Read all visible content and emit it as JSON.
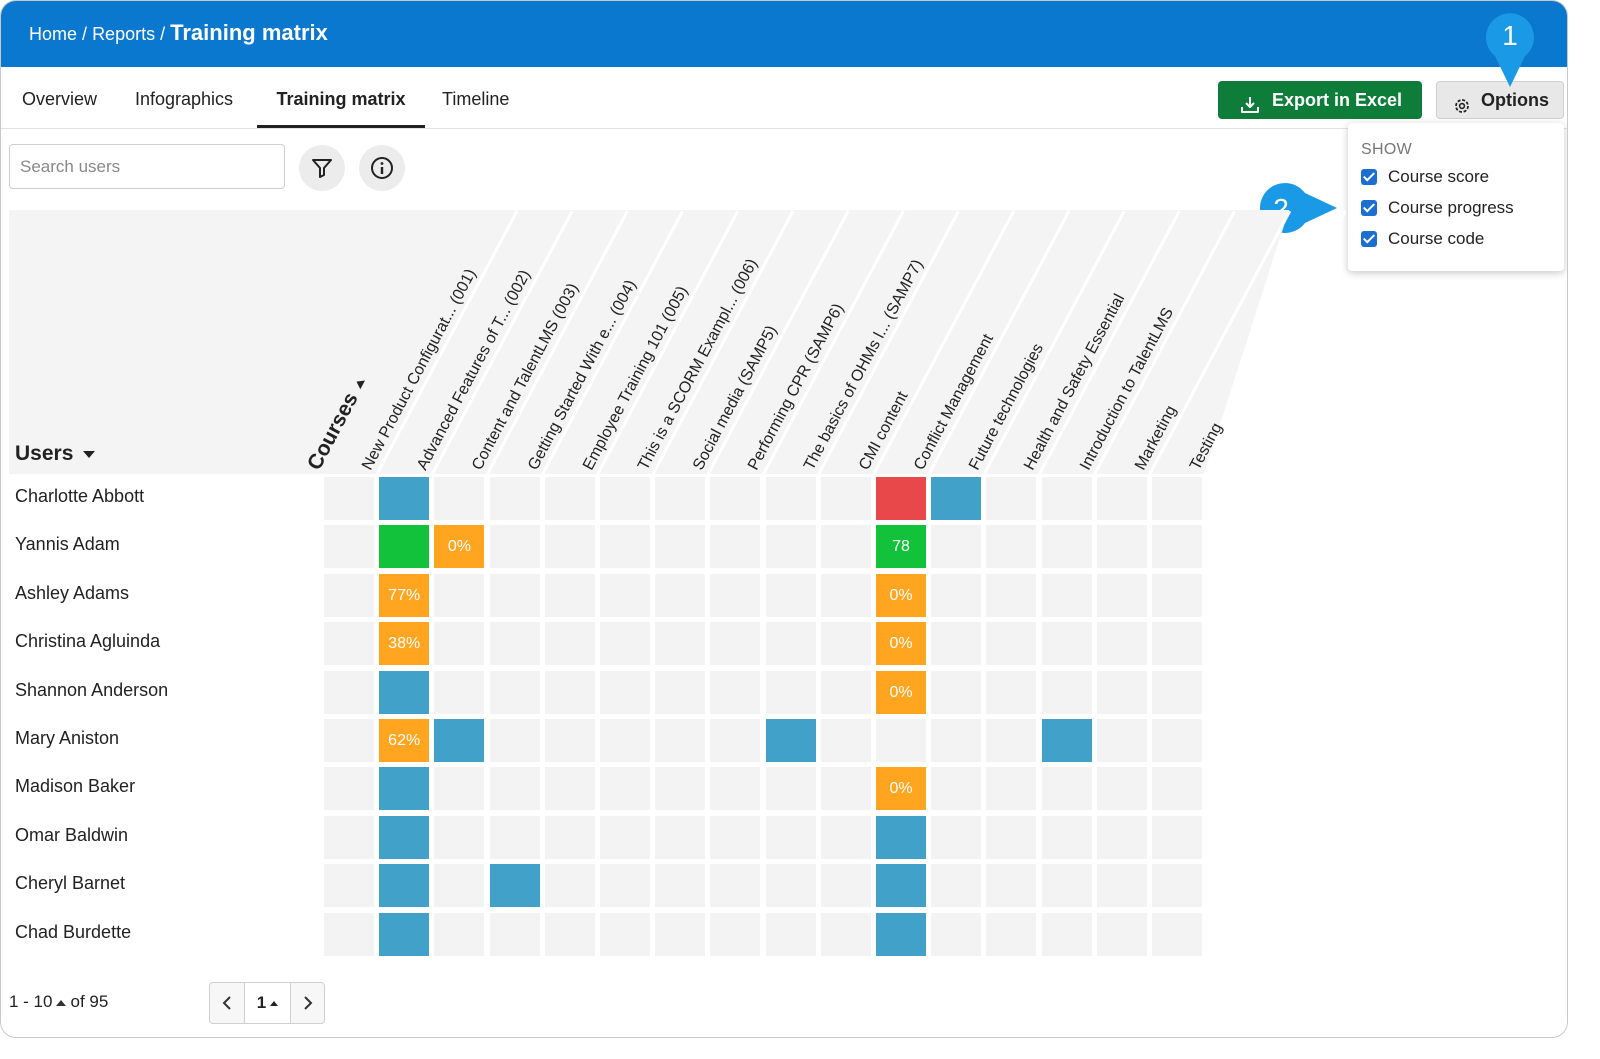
{
  "breadcrumb": {
    "home": "Home",
    "sep1": "/",
    "reports": "Reports",
    "sep2": "/",
    "current": "Training matrix"
  },
  "tabs": [
    {
      "label": "Overview"
    },
    {
      "label": "Infographics"
    },
    {
      "label": "Training matrix",
      "active": true
    },
    {
      "label": "Timeline"
    }
  ],
  "toolbar": {
    "export_label": "Export in Excel",
    "options_label": "Options",
    "export_color": "#0f7d3a"
  },
  "options_menu": {
    "header": "SHOW",
    "items": [
      {
        "label": "Course score",
        "checked": true
      },
      {
        "label": "Course progress",
        "checked": true
      },
      {
        "label": "Course code",
        "checked": true
      }
    ]
  },
  "callouts": [
    {
      "number": "1"
    },
    {
      "number": "2"
    }
  ],
  "search": {
    "placeholder": "Search users",
    "value": ""
  },
  "icons": {
    "filter": "filter-icon",
    "info": "info-icon",
    "export": "download-icon",
    "options": "gear-icon"
  },
  "matrix": {
    "users_header": "Users",
    "courses_header": "Courses",
    "courses": [
      "New Product Configurat... (001)",
      "Advanced Features of T... (002)",
      "Content and TalentLMS (003)",
      "Getting Started With e... (004)",
      "Employee Training 101 (005)",
      "This is a SCORM Exampl... (006)",
      "Social media (SAMP5)",
      "Performing CPR (SAMP6)",
      "The basics of OHMs l... (SAMP7)",
      "CMI content",
      "Conflict Management",
      "Future technologies",
      "Health and Safety Essential",
      "Introduction to TalentLMS",
      "Marketing",
      "Testing"
    ],
    "colors": {
      "empty": "#f3f3f3",
      "assigned": "#41a1c9",
      "in_progress": "#ffa51f",
      "completed": "#13c23b",
      "failed": "#e8484a"
    },
    "users": [
      {
        "name": "Charlotte Abbott",
        "cells": [
          null,
          "assigned",
          null,
          null,
          null,
          null,
          null,
          null,
          null,
          null,
          "failed",
          "assigned",
          null,
          null,
          null,
          null
        ],
        "texts": {}
      },
      {
        "name": "Yannis Adam",
        "cells": [
          null,
          "completed",
          "in_progress",
          null,
          null,
          null,
          null,
          null,
          null,
          null,
          "completed",
          null,
          null,
          null,
          null,
          null
        ],
        "texts": {
          "2": "0%",
          "10": "78"
        }
      },
      {
        "name": "Ashley Adams",
        "cells": [
          null,
          "in_progress",
          null,
          null,
          null,
          null,
          null,
          null,
          null,
          null,
          "in_progress",
          null,
          null,
          null,
          null,
          null
        ],
        "texts": {
          "1": "77%",
          "10": "0%"
        }
      },
      {
        "name": "Christina Agluinda",
        "cells": [
          null,
          "in_progress",
          null,
          null,
          null,
          null,
          null,
          null,
          null,
          null,
          "in_progress",
          null,
          null,
          null,
          null,
          null
        ],
        "texts": {
          "1": "38%",
          "10": "0%"
        }
      },
      {
        "name": "Shannon Anderson",
        "cells": [
          null,
          "assigned",
          null,
          null,
          null,
          null,
          null,
          null,
          null,
          null,
          "in_progress",
          null,
          null,
          null,
          null,
          null
        ],
        "texts": {
          "10": "0%"
        }
      },
      {
        "name": "Mary Aniston",
        "cells": [
          null,
          "in_progress",
          "assigned",
          null,
          null,
          null,
          null,
          null,
          "assigned",
          null,
          null,
          null,
          null,
          "assigned",
          null,
          null
        ],
        "texts": {
          "1": "62%"
        }
      },
      {
        "name": "Madison Baker",
        "cells": [
          null,
          "assigned",
          null,
          null,
          null,
          null,
          null,
          null,
          null,
          null,
          "in_progress",
          null,
          null,
          null,
          null,
          null
        ],
        "texts": {
          "10": "0%"
        }
      },
      {
        "name": "Omar Baldwin",
        "cells": [
          null,
          "assigned",
          null,
          null,
          null,
          null,
          null,
          null,
          null,
          null,
          "assigned",
          null,
          null,
          null,
          null,
          null
        ],
        "texts": {}
      },
      {
        "name": "Cheryl Barnet",
        "cells": [
          null,
          "assigned",
          null,
          "assigned",
          null,
          null,
          null,
          null,
          null,
          null,
          "assigned",
          null,
          null,
          null,
          null,
          null
        ],
        "texts": {}
      },
      {
        "name": "Chad Burdette",
        "cells": [
          null,
          "assigned",
          null,
          null,
          null,
          null,
          null,
          null,
          null,
          null,
          "assigned",
          null,
          null,
          null,
          null,
          null
        ],
        "texts": {}
      }
    ]
  },
  "pagination": {
    "range": "1 - 10",
    "of_label": "of 95",
    "current_page": "1",
    "prev": "‹",
    "next": "›"
  }
}
